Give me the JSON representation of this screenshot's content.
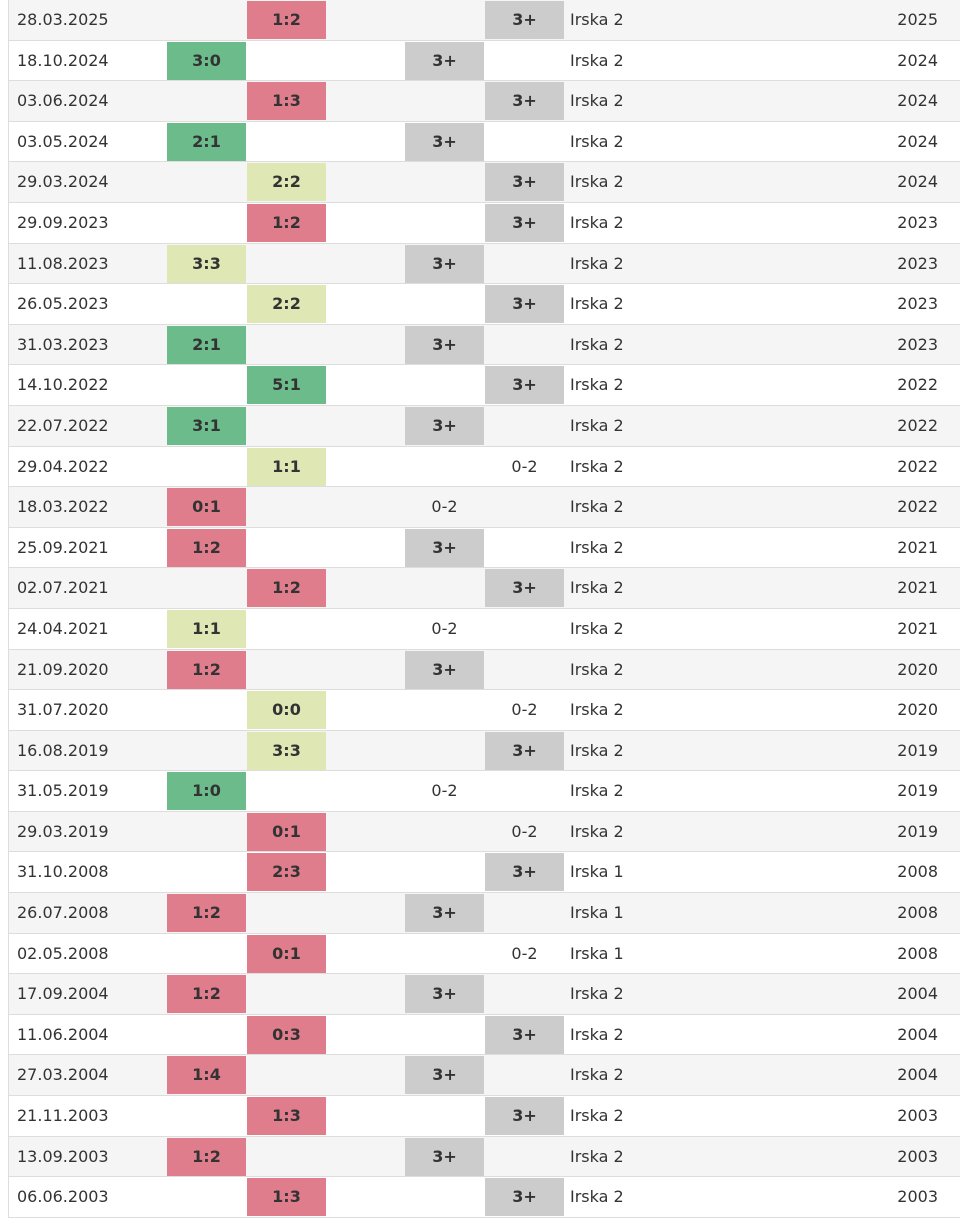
{
  "colors": {
    "win": "#6bbb8b",
    "draw": "#dfe7b4",
    "loss": "#e07d8d",
    "over": "#cccccc"
  },
  "rows": [
    {
      "date": "28.03.2025",
      "score": "1:2",
      "res": "loss",
      "col": "mid",
      "goals": "3+",
      "gcol": "right",
      "comp": "Irska 2",
      "year": "2025"
    },
    {
      "date": "18.10.2024",
      "score": "3:0",
      "res": "win",
      "col": "left",
      "goals": "3+",
      "gcol": "left",
      "comp": "Irska 2",
      "year": "2024"
    },
    {
      "date": "03.06.2024",
      "score": "1:3",
      "res": "loss",
      "col": "mid",
      "goals": "3+",
      "gcol": "right",
      "comp": "Irska 2",
      "year": "2024"
    },
    {
      "date": "03.05.2024",
      "score": "2:1",
      "res": "win",
      "col": "left",
      "goals": "3+",
      "gcol": "left",
      "comp": "Irska 2",
      "year": "2024"
    },
    {
      "date": "29.03.2024",
      "score": "2:2",
      "res": "draw",
      "col": "mid",
      "goals": "3+",
      "gcol": "right",
      "comp": "Irska 2",
      "year": "2024"
    },
    {
      "date": "29.09.2023",
      "score": "1:2",
      "res": "loss",
      "col": "mid",
      "goals": "3+",
      "gcol": "right",
      "comp": "Irska 2",
      "year": "2023"
    },
    {
      "date": "11.08.2023",
      "score": "3:3",
      "res": "draw",
      "col": "left",
      "goals": "3+",
      "gcol": "left",
      "comp": "Irska 2",
      "year": "2023"
    },
    {
      "date": "26.05.2023",
      "score": "2:2",
      "res": "draw",
      "col": "mid",
      "goals": "3+",
      "gcol": "right",
      "comp": "Irska 2",
      "year": "2023"
    },
    {
      "date": "31.03.2023",
      "score": "2:1",
      "res": "win",
      "col": "left",
      "goals": "3+",
      "gcol": "left",
      "comp": "Irska 2",
      "year": "2023"
    },
    {
      "date": "14.10.2022",
      "score": "5:1",
      "res": "win",
      "col": "mid",
      "goals": "3+",
      "gcol": "right",
      "comp": "Irska 2",
      "year": "2022"
    },
    {
      "date": "22.07.2022",
      "score": "3:1",
      "res": "win",
      "col": "left",
      "goals": "3+",
      "gcol": "left",
      "comp": "Irska 2",
      "year": "2022"
    },
    {
      "date": "29.04.2022",
      "score": "1:1",
      "res": "draw",
      "col": "mid",
      "goals": "0-2",
      "gcol": "right",
      "comp": "Irska 2",
      "year": "2022"
    },
    {
      "date": "18.03.2022",
      "score": "0:1",
      "res": "loss",
      "col": "left",
      "goals": "0-2",
      "gcol": "left",
      "comp": "Irska 2",
      "year": "2022"
    },
    {
      "date": "25.09.2021",
      "score": "1:2",
      "res": "loss",
      "col": "left",
      "goals": "3+",
      "gcol": "left",
      "comp": "Irska 2",
      "year": "2021"
    },
    {
      "date": "02.07.2021",
      "score": "1:2",
      "res": "loss",
      "col": "mid",
      "goals": "3+",
      "gcol": "right",
      "comp": "Irska 2",
      "year": "2021"
    },
    {
      "date": "24.04.2021",
      "score": "1:1",
      "res": "draw",
      "col": "left",
      "goals": "0-2",
      "gcol": "left",
      "comp": "Irska 2",
      "year": "2021"
    },
    {
      "date": "21.09.2020",
      "score": "1:2",
      "res": "loss",
      "col": "left",
      "goals": "3+",
      "gcol": "left",
      "comp": "Irska 2",
      "year": "2020"
    },
    {
      "date": "31.07.2020",
      "score": "0:0",
      "res": "draw",
      "col": "mid",
      "goals": "0-2",
      "gcol": "right",
      "comp": "Irska 2",
      "year": "2020"
    },
    {
      "date": "16.08.2019",
      "score": "3:3",
      "res": "draw",
      "col": "mid",
      "goals": "3+",
      "gcol": "right",
      "comp": "Irska 2",
      "year": "2019"
    },
    {
      "date": "31.05.2019",
      "score": "1:0",
      "res": "win",
      "col": "left",
      "goals": "0-2",
      "gcol": "left",
      "comp": "Irska 2",
      "year": "2019"
    },
    {
      "date": "29.03.2019",
      "score": "0:1",
      "res": "loss",
      "col": "mid",
      "goals": "0-2",
      "gcol": "right",
      "comp": "Irska 2",
      "year": "2019"
    },
    {
      "date": "31.10.2008",
      "score": "2:3",
      "res": "loss",
      "col": "mid",
      "goals": "3+",
      "gcol": "right",
      "comp": "Irska 1",
      "year": "2008"
    },
    {
      "date": "26.07.2008",
      "score": "1:2",
      "res": "loss",
      "col": "left",
      "goals": "3+",
      "gcol": "left",
      "comp": "Irska 1",
      "year": "2008"
    },
    {
      "date": "02.05.2008",
      "score": "0:1",
      "res": "loss",
      "col": "mid",
      "goals": "0-2",
      "gcol": "right",
      "comp": "Irska 1",
      "year": "2008"
    },
    {
      "date": "17.09.2004",
      "score": "1:2",
      "res": "loss",
      "col": "left",
      "goals": "3+",
      "gcol": "left",
      "comp": "Irska 2",
      "year": "2004"
    },
    {
      "date": "11.06.2004",
      "score": "0:3",
      "res": "loss",
      "col": "mid",
      "goals": "3+",
      "gcol": "right",
      "comp": "Irska 2",
      "year": "2004"
    },
    {
      "date": "27.03.2004",
      "score": "1:4",
      "res": "loss",
      "col": "left",
      "goals": "3+",
      "gcol": "left",
      "comp": "Irska 2",
      "year": "2004"
    },
    {
      "date": "21.11.2003",
      "score": "1:3",
      "res": "loss",
      "col": "mid",
      "goals": "3+",
      "gcol": "right",
      "comp": "Irska 2",
      "year": "2003"
    },
    {
      "date": "13.09.2003",
      "score": "1:2",
      "res": "loss",
      "col": "left",
      "goals": "3+",
      "gcol": "left",
      "comp": "Irska 2",
      "year": "2003"
    },
    {
      "date": "06.06.2003",
      "score": "1:3",
      "res": "loss",
      "col": "mid",
      "goals": "3+",
      "gcol": "right",
      "comp": "Irska 2",
      "year": "2003"
    }
  ]
}
